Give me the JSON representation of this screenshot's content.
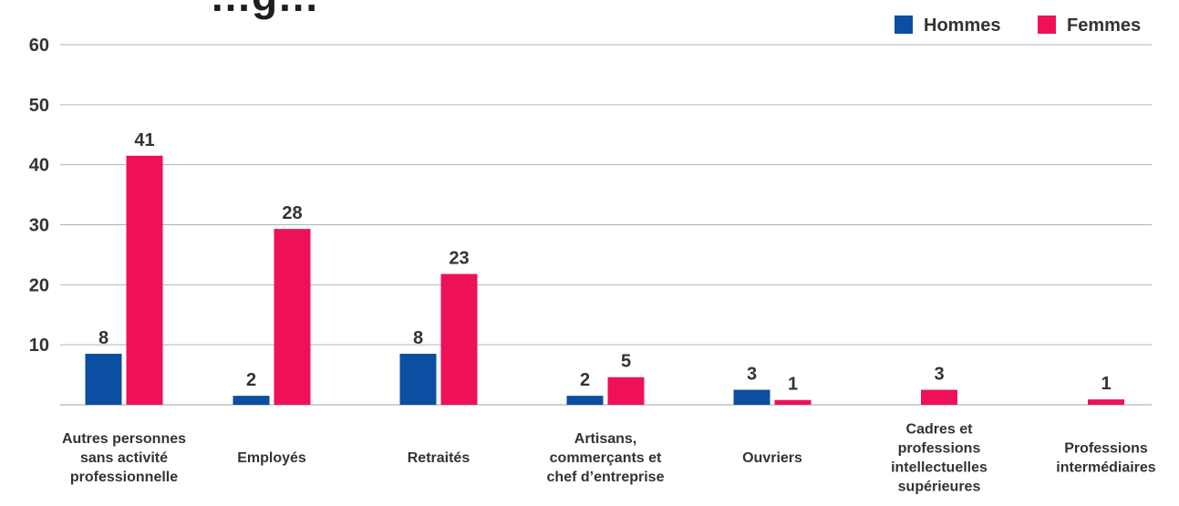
{
  "chart_data": {
    "type": "bar",
    "title": "…g…",
    "categories": [
      [
        "Autres personnes",
        "sans activité",
        "professionnelle"
      ],
      [
        "Employés"
      ],
      [
        "Retraités"
      ],
      [
        "Artisans,",
        "commerçants et",
        "chef d’entreprise"
      ],
      [
        "Ouvriers"
      ],
      [
        "Cadres et",
        "professions",
        "intellectuelles",
        "supérieures"
      ],
      [
        "Professions",
        "intermédiaires"
      ]
    ],
    "series": [
      {
        "name": "Hommes",
        "color": "#0b4ea2",
        "values": [
          8,
          2,
          8,
          2,
          3,
          null,
          null
        ],
        "labels": [
          "8",
          "2",
          "8",
          "2",
          "3",
          "",
          ""
        ]
      },
      {
        "name": "Femmes",
        "color": "#ee1157",
        "values": [
          41,
          28,
          23,
          5,
          1,
          3,
          1
        ],
        "labels": [
          "41",
          "28",
          "23",
          "5",
          "1",
          "3",
          "1"
        ]
      }
    ],
    "bar_heights": {
      "Hommes": [
        8.5,
        1.5,
        8.5,
        1.5,
        2.5,
        null,
        null
      ],
      "Femmes": [
        41.5,
        29.3,
        21.8,
        4.6,
        0.8,
        2.5,
        0.9
      ]
    },
    "yticks": [
      "10",
      "20",
      "30",
      "40",
      "50",
      "60"
    ],
    "ylim": [
      0,
      60
    ],
    "grid": true,
    "legend": "top-right"
  }
}
